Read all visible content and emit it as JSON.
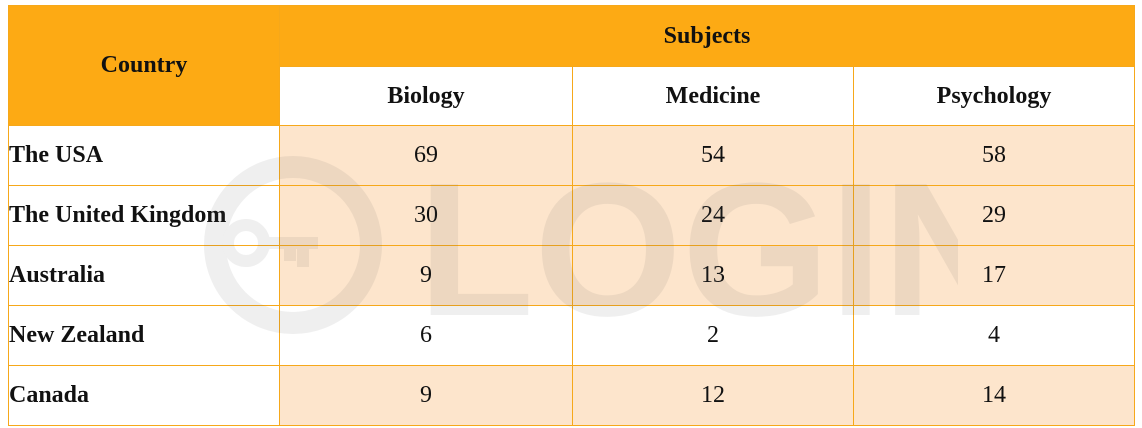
{
  "chart_data": {
    "type": "table",
    "header": {
      "row_label": "Country",
      "group_label": "Subjects",
      "columns": [
        "Biology",
        "Medicine",
        "Psychology"
      ]
    },
    "rows": [
      {
        "country": "The USA",
        "values": [
          "69",
          "54",
          "58"
        ]
      },
      {
        "country": "The United Kingdom",
        "values": [
          "30",
          "24",
          "29"
        ]
      },
      {
        "country": "Australia",
        "values": [
          "9",
          "13",
          "17"
        ]
      },
      {
        "country": "New Zealand",
        "values": [
          "6",
          "2",
          "4"
        ]
      },
      {
        "country": "Canada",
        "values": [
          "9",
          "12",
          "14"
        ]
      }
    ]
  },
  "watermark": {
    "text": "LOGIN"
  },
  "colors": {
    "header": "#fdaa14",
    "border": "#f6a81a",
    "cell_shade": "#fde5cc",
    "header_text": "#ffffff"
  }
}
